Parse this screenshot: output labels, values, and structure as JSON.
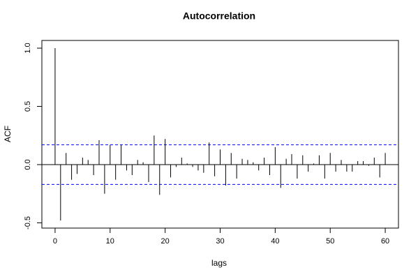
{
  "chart_data": {
    "type": "acf",
    "title": "Autocorrelation",
    "x_label": "lags",
    "y_label": "ACF",
    "x": [
      0,
      1,
      2,
      3,
      4,
      5,
      6,
      7,
      8,
      9,
      10,
      11,
      12,
      13,
      14,
      15,
      16,
      17,
      18,
      19,
      20,
      21,
      22,
      23,
      24,
      25,
      26,
      27,
      28,
      29,
      30,
      31,
      32,
      33,
      34,
      35,
      36,
      37,
      38,
      39,
      40,
      41,
      42,
      43,
      44,
      45,
      46,
      47,
      48,
      49,
      50,
      51,
      52,
      53,
      54,
      55,
      56,
      57,
      58,
      59,
      60
    ],
    "values": [
      1.0,
      -0.48,
      0.1,
      -0.13,
      -0.08,
      0.06,
      0.04,
      -0.09,
      0.21,
      -0.25,
      0.17,
      -0.13,
      0.17,
      -0.05,
      -0.09,
      0.04,
      0.02,
      -0.15,
      0.25,
      -0.26,
      0.22,
      -0.11,
      -0.02,
      0.06,
      0.01,
      -0.02,
      -0.05,
      -0.07,
      0.19,
      -0.1,
      0.13,
      -0.18,
      0.1,
      -0.12,
      0.05,
      0.04,
      0.02,
      -0.05,
      0.06,
      -0.09,
      0.15,
      -0.2,
      0.05,
      0.09,
      -0.12,
      0.08,
      -0.06,
      0.01,
      0.08,
      -0.12,
      0.1,
      -0.06,
      0.04,
      -0.06,
      -0.06,
      0.03,
      0.03,
      -0.01,
      0.06,
      -0.11,
      0.1
    ],
    "color": "#000000",
    "confidence_bounds": [
      0.17,
      -0.17
    ],
    "confidence_color": "#0000ff",
    "xlim": [
      -2.4,
      62.4
    ],
    "xticks": [
      0,
      10,
      20,
      30,
      40,
      50,
      60
    ],
    "ylim": [
      -0.545,
      1.066
    ],
    "yticks": [
      -0.5,
      {
        "value": 0,
        "label": "0.0"
      },
      0.5,
      {
        "value": 1,
        "label": "1.0"
      }
    ]
  }
}
